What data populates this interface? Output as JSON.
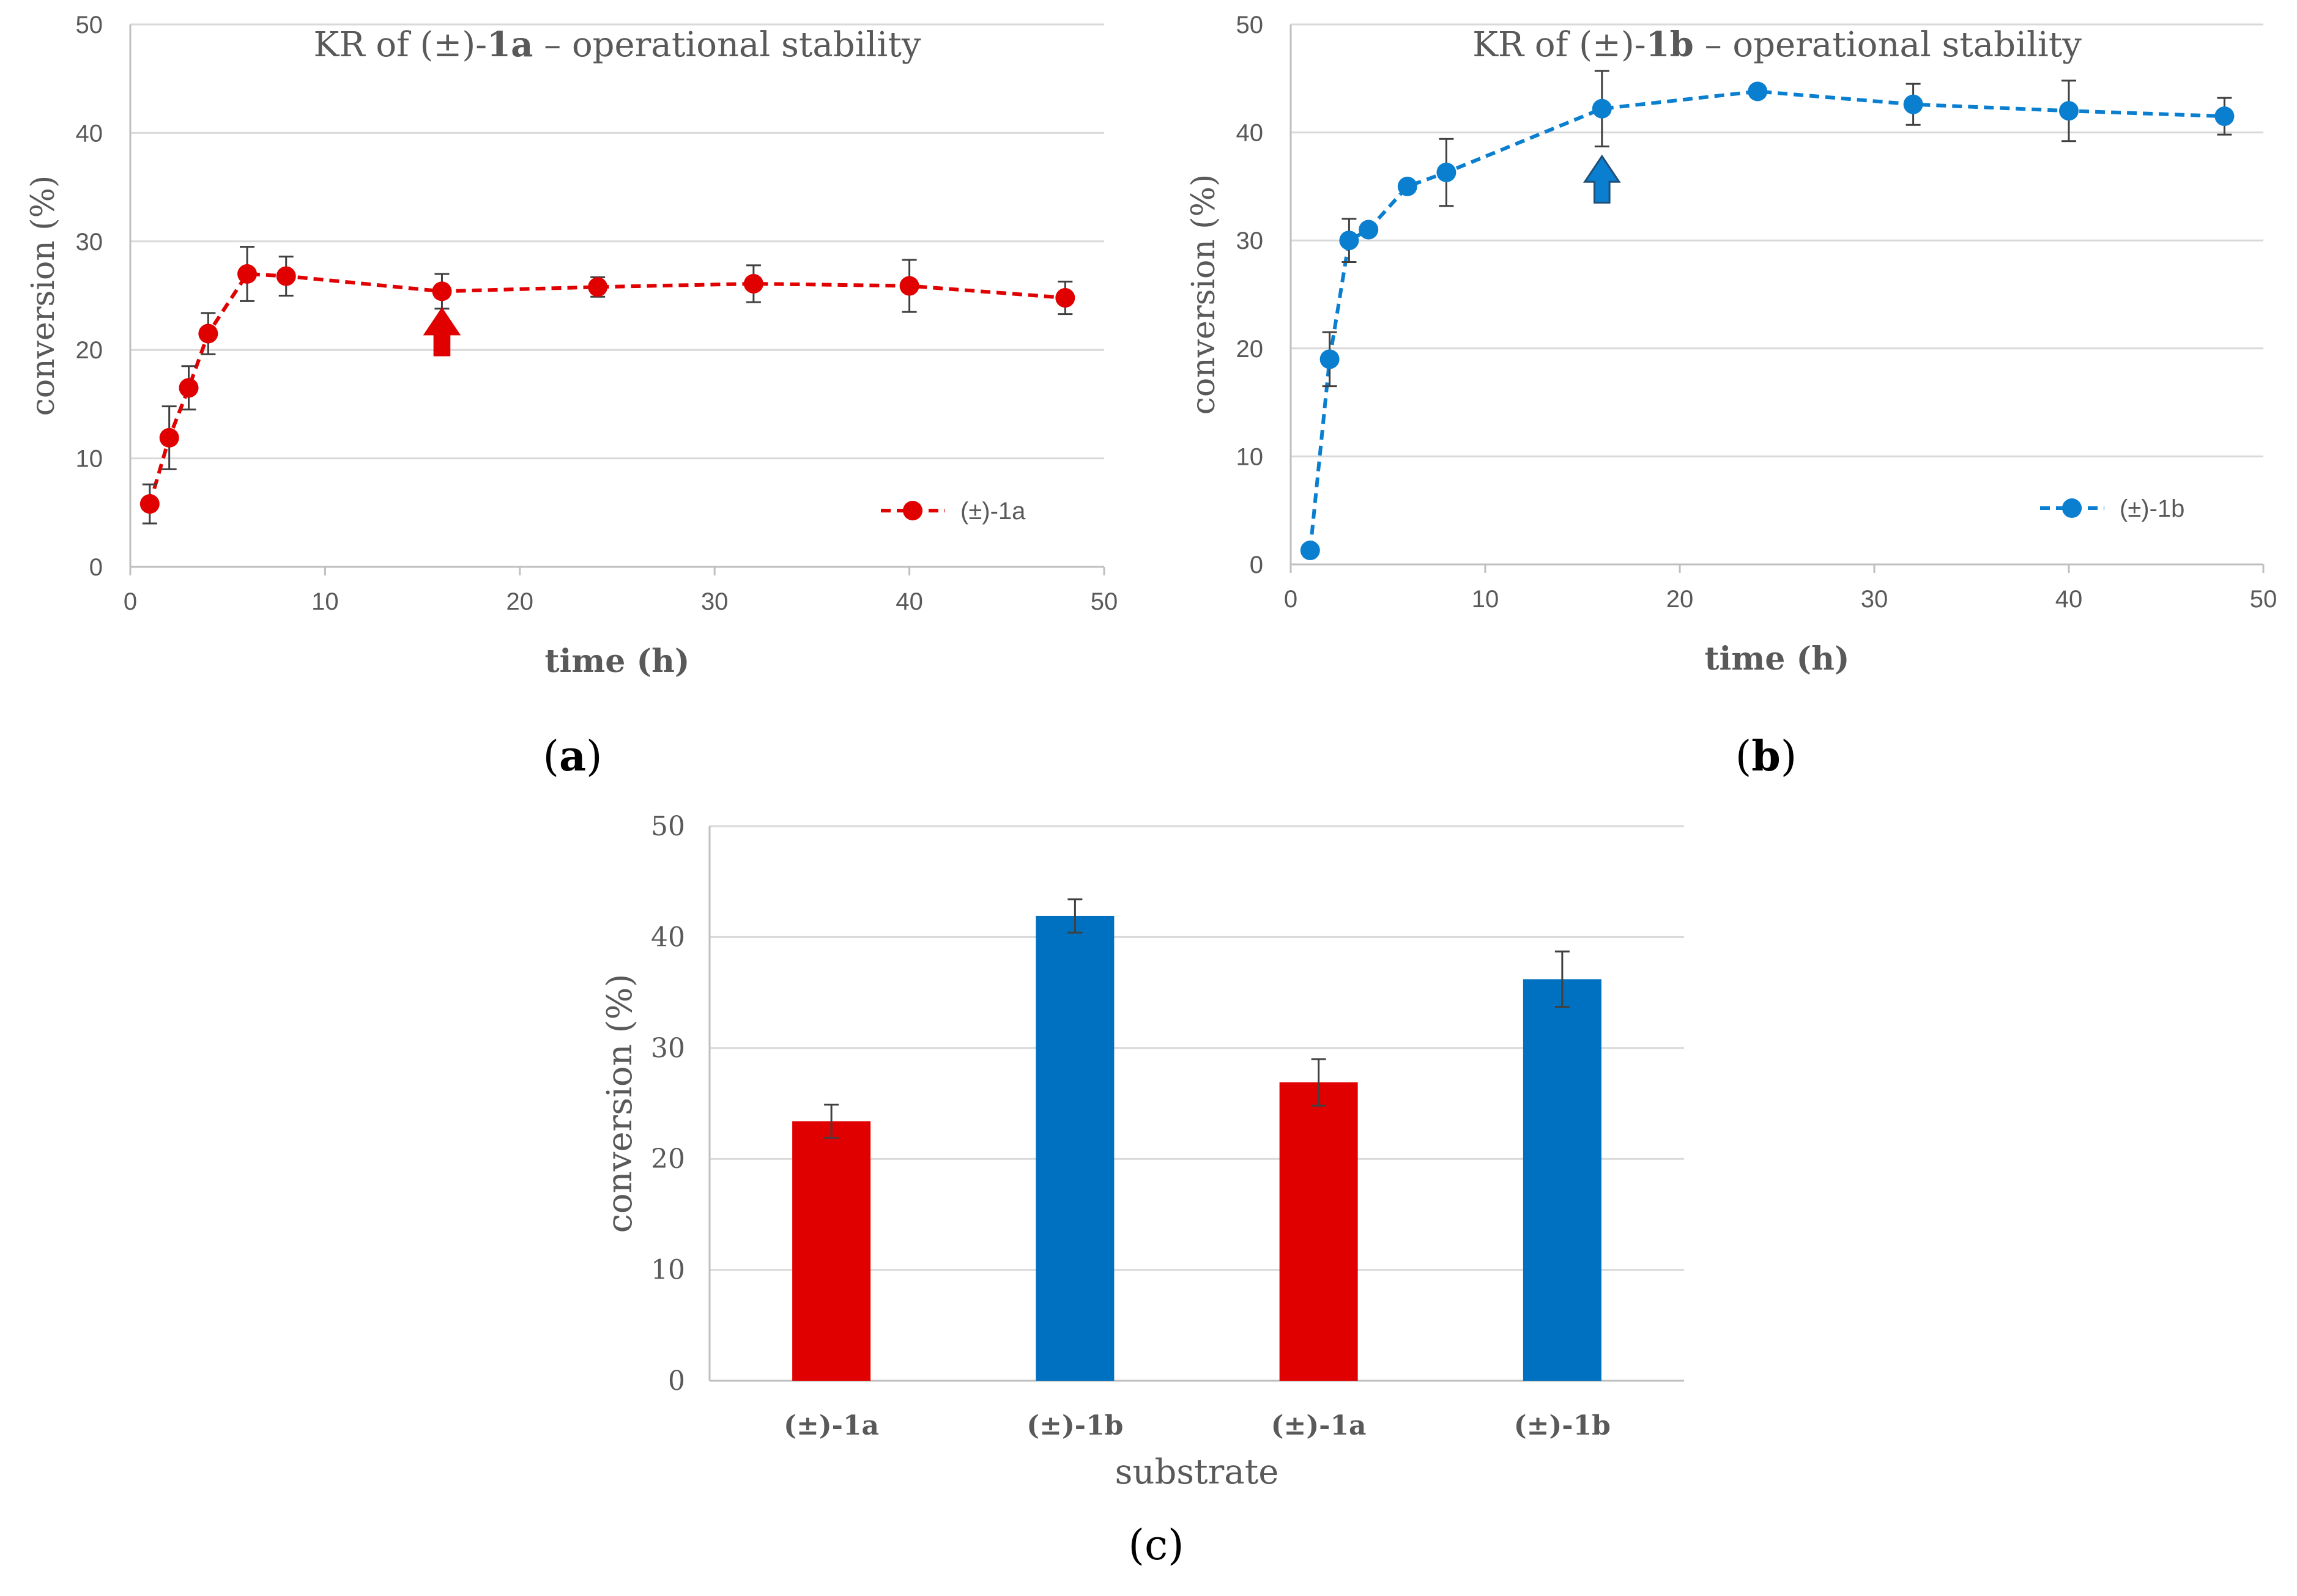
{
  "chart_data": [
    {
      "id": "a",
      "type": "line",
      "panel_label": "a",
      "title": "KR of (±)-1a – operational stability",
      "title_parts": [
        "KR of (±)-",
        "1a",
        " – operational stability"
      ],
      "xlabel": "time (h)",
      "ylabel": "conversion (%)",
      "xlim": [
        0,
        50
      ],
      "ylim": [
        0,
        50
      ],
      "xticks": [
        "0",
        "10",
        "20",
        "30",
        "40",
        "50"
      ],
      "yticks": [
        "0",
        "10",
        "20",
        "30",
        "40",
        "50"
      ],
      "grid": true,
      "legend_position": "bottom-right",
      "color": "#e00000",
      "series": [
        {
          "name": "(±)-1a",
          "x": [
            1,
            2,
            3,
            4,
            6,
            8,
            16,
            24,
            32,
            40,
            48
          ],
          "y": [
            5.8,
            11.9,
            16.5,
            21.5,
            27.0,
            26.8,
            25.4,
            25.8,
            26.1,
            25.9,
            24.8
          ],
          "err": [
            1.8,
            2.9,
            2.0,
            1.9,
            2.5,
            1.8,
            1.6,
            0.9,
            1.7,
            2.4,
            1.5
          ]
        }
      ],
      "annotation": {
        "type": "arrow-up",
        "x": 16,
        "y": 19.5,
        "label": "arrow"
      }
    },
    {
      "id": "b",
      "type": "line",
      "panel_label": "b",
      "title": "KR of (±)-1b – operational stability",
      "title_parts": [
        "KR of (±)-",
        "1b",
        " – operational stability"
      ],
      "xlabel": "time (h)",
      "ylabel": "conversion (%)",
      "xlim": [
        0,
        50
      ],
      "ylim": [
        0,
        50
      ],
      "xticks": [
        "0",
        "10",
        "20",
        "30",
        "40",
        "50"
      ],
      "yticks": [
        "0",
        "10",
        "20",
        "30",
        "40",
        "50"
      ],
      "grid": true,
      "legend_position": "bottom-right",
      "color": "#0a7fd0",
      "series": [
        {
          "name": "(±)-1b",
          "x": [
            1,
            2,
            3,
            4,
            6,
            8,
            16,
            24,
            32,
            40,
            48
          ],
          "y": [
            1.3,
            19.0,
            30.0,
            31.0,
            35.0,
            36.3,
            42.2,
            43.8,
            42.6,
            42.0,
            41.5
          ],
          "err": [
            0,
            2.5,
            2.0,
            0,
            0,
            3.1,
            3.5,
            0,
            1.9,
            2.8,
            1.7
          ]
        }
      ],
      "annotation": {
        "type": "arrow-up",
        "x": 16,
        "y": 33.5,
        "label": "arrow"
      }
    },
    {
      "id": "c",
      "type": "bar",
      "panel_label": "c",
      "title": "",
      "xlabel": "substrate",
      "ylabel": "conversion (%)",
      "ylim": [
        0,
        50
      ],
      "yticks": [
        "0",
        "10",
        "20",
        "30",
        "40",
        "50"
      ],
      "grid": true,
      "categories": [
        "(±)-1a",
        "(±)-1b",
        "(±)-1a",
        "(±)-1b"
      ],
      "values": [
        23.4,
        41.9,
        26.9,
        36.2
      ],
      "err": [
        1.5,
        1.5,
        2.1,
        2.5
      ],
      "colors": [
        "#e00000",
        "#0070c0",
        "#e00000",
        "#0070c0"
      ]
    }
  ]
}
